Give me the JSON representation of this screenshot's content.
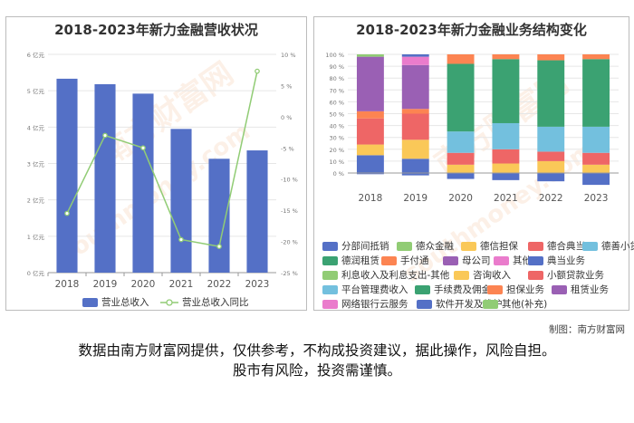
{
  "source_credit": "制图：南方财富网",
  "disclaimer": {
    "line1": "数据由南方财富网提供，仅供参考，不构成投资建议，据此操作，风险自担。",
    "line2": "股市有风险，投资需谨慎。"
  },
  "chart_data": [
    {
      "type": "bar",
      "title": "2018-2023年新力金融营收状况",
      "categories": [
        "2018",
        "2019",
        "2020",
        "2021",
        "2022",
        "2023"
      ],
      "series": [
        {
          "name": "营业总收入",
          "type": "bar",
          "axis": "left",
          "color": "#5470c6",
          "values": [
            5.33,
            5.18,
            4.92,
            3.95,
            3.13,
            3.36
          ]
        },
        {
          "name": "营业总收入同比",
          "type": "line",
          "axis": "right",
          "color": "#91cc75",
          "values": [
            -15.5,
            -3.0,
            -5.0,
            -19.7,
            -20.8,
            7.3
          ]
        }
      ],
      "y_left": {
        "ylim": [
          0,
          6
        ],
        "ticks": [
          "0 亿元",
          "1 亿元",
          "2 亿元",
          "3 亿元",
          "4 亿元",
          "5 亿元",
          "6 亿元"
        ]
      },
      "y_right": {
        "ylim": [
          -25,
          10
        ],
        "ticks": [
          "-25 %",
          "-20 %",
          "-15 %",
          "-10 %",
          "-5 %",
          "0 %",
          "5 %",
          "10 %"
        ]
      },
      "legend_position": "bottom"
    },
    {
      "type": "bar",
      "stacked": true,
      "title": "2018-2023年新力金融业务结构变化",
      "categories": [
        "2018",
        "2019",
        "2020",
        "2021",
        "2022",
        "2023"
      ],
      "ylim": [
        -10,
        100
      ],
      "y_ticks": [
        "0 %",
        "10 %",
        "20 %",
        "30 %",
        "40 %",
        "50 %",
        "60 %",
        "70 %",
        "80 %",
        "90 %",
        "100 %"
      ],
      "series": [
        {
          "name": "分部间抵销",
          "color": "#5470c6",
          "values": [
            -1,
            -2,
            -5,
            -6,
            -7,
            -10
          ]
        },
        {
          "name": "德众金融",
          "color": "#91cc75",
          "values": [
            0,
            0,
            0,
            0,
            0,
            0
          ]
        },
        {
          "name": "德信担保",
          "color": "#fac858",
          "values": [
            0,
            0,
            0,
            0,
            0,
            0
          ]
        },
        {
          "name": "德合典当",
          "color": "#ee6666",
          "values": [
            0,
            0,
            0,
            0,
            0,
            0
          ]
        },
        {
          "name": "德善小贷",
          "color": "#73c0de",
          "values": [
            0,
            0,
            0,
            0,
            0,
            0
          ]
        },
        {
          "name": "德润租赁",
          "color": "#3ba272",
          "values": [
            0,
            0,
            0,
            0,
            0,
            0
          ]
        },
        {
          "name": "手付通",
          "color": "#fc8452",
          "values": [
            0,
            0,
            0,
            0,
            0,
            0
          ]
        },
        {
          "name": "母公司",
          "color": "#9a60b4",
          "values": [
            0,
            0,
            0,
            0,
            0,
            0
          ]
        },
        {
          "name": "其他",
          "color": "#ea7ccc",
          "values": [
            0,
            0,
            0,
            0,
            0,
            0
          ]
        },
        {
          "name": "典当业务",
          "color": "#5470c6",
          "values": [
            15,
            12,
            0,
            0,
            0,
            0
          ]
        },
        {
          "name": "利息收入及利息支出-其他",
          "color": "#91cc75",
          "values": [
            0,
            0,
            0,
            0,
            0,
            0
          ]
        },
        {
          "name": "咨询收入",
          "color": "#fac858",
          "values": [
            9,
            16,
            7,
            8,
            10,
            7
          ]
        },
        {
          "name": "小额贷款业务",
          "color": "#ee6666",
          "values": [
            22,
            22,
            10,
            12,
            8,
            10
          ]
        },
        {
          "name": "平台管理费收入",
          "color": "#73c0de",
          "values": [
            0,
            0,
            18,
            22,
            21,
            22
          ]
        },
        {
          "name": "手续费及佣金",
          "color": "#3ba272",
          "values": [
            0,
            0,
            57,
            54,
            56,
            57
          ]
        },
        {
          "name": "担保业务",
          "color": "#fc8452",
          "values": [
            6,
            4,
            8,
            4,
            5,
            4
          ]
        },
        {
          "name": "租赁业务",
          "color": "#9a60b4",
          "values": [
            46,
            37,
            0,
            0,
            0,
            0
          ]
        },
        {
          "name": "网络银行云服务",
          "color": "#ea7ccc",
          "values": [
            0,
            7,
            0,
            0,
            0,
            0
          ]
        },
        {
          "name": "软件开发及维护",
          "color": "#5470c6",
          "values": [
            0,
            2,
            0,
            0,
            0,
            0
          ]
        },
        {
          "name": "其他(补充)",
          "color": "#91cc75",
          "values": [
            2,
            0,
            0,
            0,
            0,
            0
          ]
        }
      ],
      "legend_position": "bottom"
    }
  ]
}
